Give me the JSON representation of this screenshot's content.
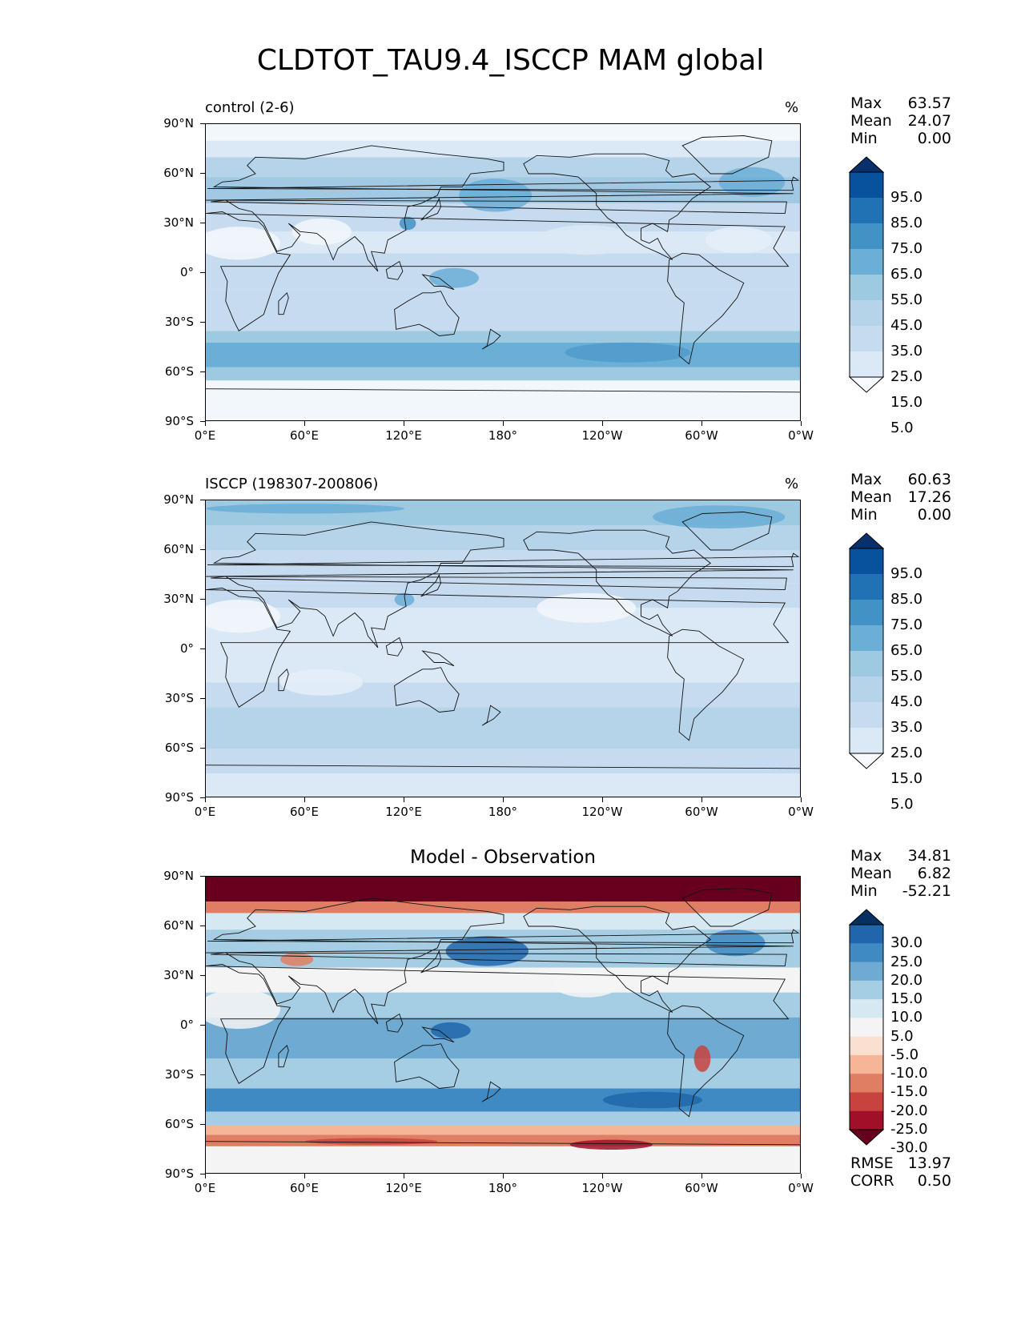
{
  "title": "CLDTOT_TAU9.4_ISCCP MAM global",
  "axes": {
    "lat_labels": [
      "90°N",
      "60°N",
      "30°N",
      "0°",
      "30°S",
      "60°S",
      "90°S"
    ],
    "lon_labels": [
      "0°E",
      "60°E",
      "120°E",
      "180°",
      "120°W",
      "60°W",
      "0°W"
    ]
  },
  "panels": [
    {
      "id": "control",
      "title_left": "control (2-6)",
      "unit": "%",
      "stats": [
        {
          "label": "Max",
          "value": "63.57"
        },
        {
          "label": "Mean",
          "value": "24.07"
        },
        {
          "label": "Min",
          "value": "0.00"
        }
      ],
      "colorbar": {
        "labels": [
          "95.0",
          "85.0",
          "75.0",
          "65.0",
          "55.0",
          "45.0",
          "35.0",
          "25.0",
          "15.0",
          "5.0"
        ],
        "colors": [
          "#08306b",
          "#08519c",
          "#2171b5",
          "#4292c6",
          "#6baed6",
          "#9ecae1",
          "#b5d4ea",
          "#c6dbef",
          "#dbe9f6",
          "#f7fbff"
        ]
      }
    },
    {
      "id": "obs",
      "title_left": "ISCCP (198307-200806)",
      "unit": "%",
      "stats": [
        {
          "label": "Max",
          "value": "60.63"
        },
        {
          "label": "Mean",
          "value": "17.26"
        },
        {
          "label": "Min",
          "value": "0.00"
        }
      ],
      "colorbar": {
        "labels": [
          "95.0",
          "85.0",
          "75.0",
          "65.0",
          "55.0",
          "45.0",
          "35.0",
          "25.0",
          "15.0",
          "5.0"
        ],
        "colors": [
          "#08306b",
          "#08519c",
          "#2171b5",
          "#4292c6",
          "#6baed6",
          "#9ecae1",
          "#b5d4ea",
          "#c6dbef",
          "#dbe9f6",
          "#f7fbff"
        ]
      }
    },
    {
      "id": "diff",
      "title_center": "Model - Observation",
      "stats": [
        {
          "label": "Max",
          "value": "34.81"
        },
        {
          "label": "Mean",
          "value": "6.82"
        },
        {
          "label": "Min",
          "value": "-52.21"
        }
      ],
      "extra_stats": [
        {
          "label": "RMSE",
          "value": "13.97"
        },
        {
          "label": "CORR",
          "value": "0.50"
        }
      ],
      "colorbar": {
        "labels": [
          "30.0",
          "25.0",
          "20.0",
          "15.0",
          "10.0",
          "5.0",
          "-5.0",
          "-10.0",
          "-15.0",
          "-20.0",
          "-25.0",
          "-30.0"
        ],
        "colors": [
          "#053061",
          "#2166ac",
          "#3f8ac2",
          "#6eaad1",
          "#a5cde3",
          "#d6e8f1",
          "#f4f4f4",
          "#fbe0d2",
          "#f5b596",
          "#e07e64",
          "#c8433e",
          "#a10f29",
          "#67001f"
        ]
      }
    }
  ]
}
